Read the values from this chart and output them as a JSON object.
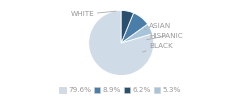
{
  "labels": [
    "WHITE",
    "ASIAN",
    "HISPANIC",
    "BLACK"
  ],
  "values": [
    79.6,
    5.3,
    8.9,
    6.2
  ],
  "colors": [
    "#cfdce8",
    "#a8c4d8",
    "#4a7da8",
    "#2a5070"
  ],
  "legend_order": [
    0,
    2,
    3,
    1
  ],
  "legend_pct": [
    "79.6%",
    "8.9%",
    "6.2%",
    "5.3%"
  ],
  "legend_colors": [
    "#cfdce8",
    "#4a7da8",
    "#2a5070",
    "#a8c4d8"
  ],
  "startangle": 90,
  "text_color": "#999999",
  "line_color": "#aaaaaa",
  "bg_color": "#ffffff"
}
